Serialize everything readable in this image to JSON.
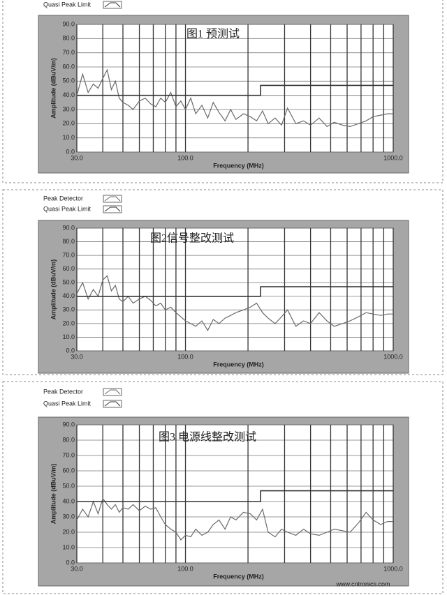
{
  "chart_data": [
    {
      "type": "line",
      "title": "图1 预测试",
      "xlabel": "Frequency (MHz)",
      "ylabel": "Amplitude (dBuV/m)",
      "xscale": "log",
      "grid": true,
      "xlim": [
        30,
        1000
      ],
      "xticks": [
        {
          "value": 30,
          "label": "30.0"
        },
        {
          "value": 100,
          "label": "100.0"
        },
        {
          "value": 1000,
          "label": "1000.0"
        }
      ],
      "x_minor_grid": [
        40,
        50,
        60,
        70,
        80,
        90,
        200,
        300,
        400,
        500,
        600,
        700,
        800,
        900
      ],
      "ylim": [
        0,
        90
      ],
      "yticks": [
        {
          "value": 0,
          "label": "0.0"
        },
        {
          "value": 10,
          "label": "10.0"
        },
        {
          "value": 20,
          "label": "20.0"
        },
        {
          "value": 30,
          "label": "30.0"
        },
        {
          "value": 40,
          "label": "40.0"
        },
        {
          "value": 50,
          "label": "50.0"
        },
        {
          "value": 60,
          "label": "60.0"
        },
        {
          "value": 70,
          "label": "70.0"
        },
        {
          "value": 80,
          "label": "80.0"
        },
        {
          "value": 90,
          "label": "90.0"
        }
      ],
      "series": [
        {
          "color": "#6a6a6a",
          "x": [
            30,
            32,
            34,
            36,
            38,
            40,
            42,
            44,
            46,
            48,
            50,
            53,
            56,
            60,
            64,
            68,
            72,
            76,
            80,
            85,
            90,
            95,
            100,
            106,
            112,
            120,
            128,
            136,
            145,
            155,
            165,
            175,
            190,
            205,
            220,
            235,
            250,
            270,
            290,
            310,
            340,
            370,
            400,
            440,
            480,
            520,
            570,
            620,
            680,
            740,
            800,
            870,
            940,
            1000
          ],
          "values": [
            40,
            55,
            42,
            48,
            45,
            52,
            58,
            44,
            50,
            38,
            35,
            33,
            30,
            36,
            38,
            34,
            32,
            38,
            35,
            42,
            32,
            36,
            30,
            38,
            27,
            33,
            24,
            35,
            28,
            22,
            30,
            23,
            27,
            25,
            22,
            29,
            20,
            24,
            19,
            31,
            20,
            22,
            19,
            24,
            18,
            21,
            19,
            18,
            20,
            22,
            25,
            26,
            27,
            27
          ]
        },
        {
          "name": "Quasi Peak Limit",
          "color": "#333333",
          "x": [
            30,
            230,
            230,
            1000
          ],
          "values": [
            40,
            40,
            47,
            47
          ]
        }
      ]
    },
    {
      "type": "line",
      "title": "图2信号整改测试",
      "xlabel": "Frequency (MHz)",
      "ylabel": "Amplitude (dBuV/m)",
      "xscale": "log",
      "grid": true,
      "xlim": [
        30,
        1000
      ],
      "xticks": [
        {
          "value": 30,
          "label": "30.0"
        },
        {
          "value": 100,
          "label": "100.0"
        },
        {
          "value": 1000,
          "label": "1000.0"
        }
      ],
      "x_minor_grid": [
        40,
        50,
        60,
        70,
        80,
        90,
        200,
        300,
        400,
        500,
        600,
        700,
        800,
        900
      ],
      "ylim": [
        0,
        90
      ],
      "yticks": [
        {
          "value": 0,
          "label": "0.0"
        },
        {
          "value": 10,
          "label": "10.0"
        },
        {
          "value": 20,
          "label": "20.0"
        },
        {
          "value": 30,
          "label": "30.0"
        },
        {
          "value": 40,
          "label": "40.0"
        },
        {
          "value": 50,
          "label": "50.0"
        },
        {
          "value": 60,
          "label": "60.0"
        },
        {
          "value": 70,
          "label": "70.0"
        },
        {
          "value": 80,
          "label": "80.0"
        },
        {
          "value": 90,
          "label": "90.0"
        }
      ],
      "series": [
        {
          "name": "Peak Detector",
          "color": "#6a6a6a",
          "x": [
            30,
            32,
            34,
            36,
            38,
            40,
            42,
            44,
            46,
            48,
            50,
            53,
            56,
            60,
            64,
            68,
            72,
            76,
            80,
            85,
            90,
            95,
            100,
            106,
            112,
            120,
            128,
            136,
            145,
            155,
            165,
            175,
            190,
            205,
            220,
            235,
            250,
            270,
            290,
            310,
            340,
            370,
            400,
            440,
            480,
            520,
            570,
            620,
            680,
            740,
            800,
            870,
            940,
            1000
          ],
          "values": [
            42,
            50,
            38,
            45,
            40,
            52,
            55,
            44,
            48,
            38,
            36,
            40,
            35,
            38,
            40,
            37,
            33,
            35,
            30,
            32,
            28,
            25,
            22,
            20,
            18,
            22,
            15,
            23,
            20,
            24,
            26,
            28,
            30,
            32,
            35,
            28,
            24,
            20,
            25,
            30,
            18,
            22,
            20,
            28,
            22,
            18,
            20,
            22,
            25,
            28,
            27,
            26,
            27,
            27
          ]
        },
        {
          "name": "Quasi Peak Limit",
          "color": "#333333",
          "x": [
            30,
            230,
            230,
            1000
          ],
          "values": [
            40,
            40,
            47,
            47
          ]
        }
      ]
    },
    {
      "type": "line",
      "title": "图3 电源线整改测试",
      "xlabel": "Frequency (MHz)",
      "ylabel": "Amplitude (dBuV/m)",
      "xscale": "log",
      "grid": true,
      "watermark": "www.cntronics.com",
      "xlim": [
        30,
        1000
      ],
      "xticks": [
        {
          "value": 30,
          "label": "30.0"
        },
        {
          "value": 100,
          "label": "100.0"
        },
        {
          "value": 1000,
          "label": "1000.0"
        }
      ],
      "x_minor_grid": [
        40,
        50,
        60,
        70,
        80,
        90,
        200,
        300,
        400,
        500,
        600,
        700,
        800,
        900
      ],
      "ylim": [
        0,
        90
      ],
      "yticks": [
        {
          "value": 0,
          "label": "0.0"
        },
        {
          "value": 10,
          "label": "10.0"
        },
        {
          "value": 20,
          "label": "20.0"
        },
        {
          "value": 30,
          "label": "30.0"
        },
        {
          "value": 40,
          "label": "40.0"
        },
        {
          "value": 50,
          "label": "50.0"
        },
        {
          "value": 60,
          "label": "60.0"
        },
        {
          "value": 70,
          "label": "70.0"
        },
        {
          "value": 80,
          "label": "80.0"
        },
        {
          "value": 90,
          "label": "90.0"
        }
      ],
      "series": [
        {
          "name": "Peak Detector",
          "color": "#6a6a6a",
          "x": [
            30,
            32,
            34,
            36,
            38,
            40,
            42,
            44,
            46,
            48,
            50,
            53,
            56,
            60,
            64,
            68,
            72,
            76,
            80,
            85,
            90,
            95,
            100,
            106,
            112,
            120,
            128,
            136,
            145,
            155,
            165,
            175,
            190,
            205,
            220,
            235,
            250,
            270,
            290,
            310,
            340,
            370,
            400,
            440,
            480,
            520,
            570,
            620,
            680,
            740,
            800,
            870,
            940,
            1000
          ],
          "values": [
            28,
            35,
            30,
            40,
            32,
            42,
            38,
            35,
            38,
            33,
            36,
            35,
            38,
            34,
            37,
            35,
            36,
            30,
            25,
            22,
            20,
            15,
            18,
            17,
            22,
            18,
            20,
            25,
            28,
            22,
            30,
            28,
            33,
            32,
            28,
            35,
            20,
            17,
            22,
            20,
            18,
            22,
            19,
            18,
            20,
            22,
            21,
            20,
            26,
            33,
            28,
            25,
            27,
            27
          ]
        },
        {
          "name": "Quasi Peak Limit",
          "color": "#333333",
          "x": [
            30,
            230,
            230,
            1000
          ],
          "values": [
            40,
            40,
            47,
            47
          ]
        }
      ]
    }
  ]
}
